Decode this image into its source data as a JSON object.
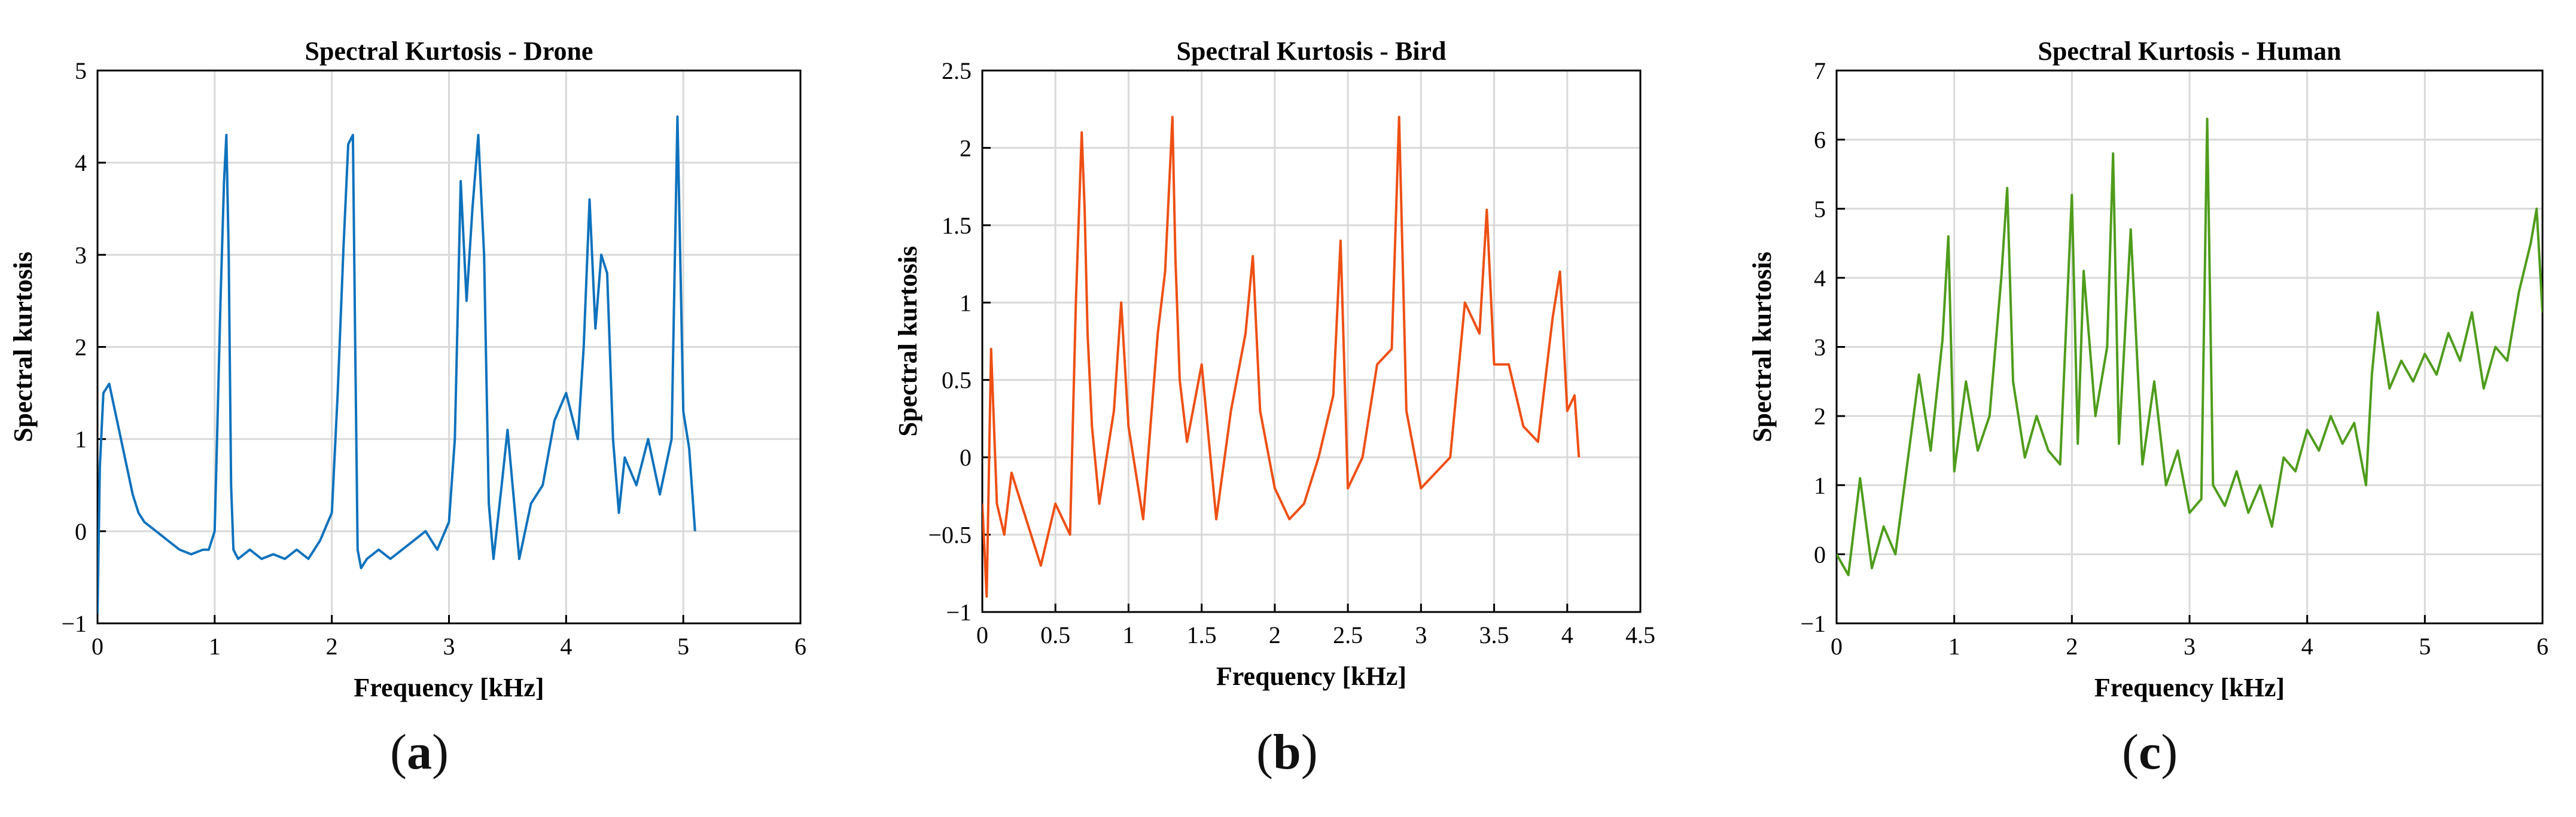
{
  "chart_data": [
    {
      "type": "line",
      "title": "Spectral Kurtosis - Drone",
      "xlabel": "Frequency [kHz]",
      "ylabel": "Spectral kurtosis",
      "xlim": [
        0,
        6
      ],
      "ylim": [
        -1,
        5
      ],
      "xticks": [
        "0",
        "1",
        "2",
        "3",
        "4",
        "5",
        "6"
      ],
      "yticks": [
        "−1",
        "0",
        "1",
        "2",
        "3",
        "4",
        "5"
      ],
      "grid": true,
      "color": "#0e72bd",
      "caption_letter": "a",
      "x": [
        0.0,
        0.02,
        0.05,
        0.1,
        0.15,
        0.2,
        0.25,
        0.3,
        0.35,
        0.4,
        0.5,
        0.6,
        0.7,
        0.8,
        0.9,
        0.95,
        1.0,
        1.02,
        1.05,
        1.08,
        1.1,
        1.12,
        1.14,
        1.16,
        1.2,
        1.3,
        1.4,
        1.5,
        1.6,
        1.7,
        1.8,
        1.9,
        2.0,
        2.05,
        2.1,
        2.14,
        2.18,
        2.2,
        2.22,
        2.25,
        2.3,
        2.4,
        2.5,
        2.6,
        2.7,
        2.8,
        2.9,
        3.0,
        3.05,
        3.1,
        3.15,
        3.2,
        3.25,
        3.3,
        3.34,
        3.38,
        3.45,
        3.5,
        3.6,
        3.7,
        3.8,
        3.9,
        4.0,
        4.1,
        4.15,
        4.2,
        4.25,
        4.3,
        4.35,
        4.4,
        4.45,
        4.5,
        4.6,
        4.7,
        4.8,
        4.9,
        4.95,
        5.0,
        5.05,
        5.1
      ],
      "y": [
        -0.9,
        0.7,
        1.5,
        1.6,
        1.3,
        1.0,
        0.7,
        0.4,
        0.2,
        0.1,
        0.0,
        -0.1,
        -0.2,
        -0.25,
        -0.2,
        -0.2,
        0.0,
        1.0,
        2.5,
        3.8,
        4.3,
        3.0,
        0.5,
        -0.2,
        -0.3,
        -0.2,
        -0.3,
        -0.25,
        -0.3,
        -0.2,
        -0.3,
        -0.1,
        0.2,
        1.5,
        3.1,
        4.2,
        4.3,
        2.0,
        -0.2,
        -0.4,
        -0.3,
        -0.2,
        -0.3,
        -0.2,
        -0.1,
        0.0,
        -0.2,
        0.1,
        1.0,
        3.8,
        2.5,
        3.5,
        4.3,
        3.0,
        0.3,
        -0.3,
        0.5,
        1.1,
        -0.3,
        0.3,
        0.5,
        1.2,
        1.5,
        1.0,
        2.0,
        3.6,
        2.2,
        3.0,
        2.8,
        1.0,
        0.2,
        0.8,
        0.5,
        1.0,
        0.4,
        1.0,
        4.5,
        1.3,
        0.9,
        0.0
      ]
    },
    {
      "type": "line",
      "title": "Spectral Kurtosis - Bird",
      "xlabel": "Frequency [kHz]",
      "ylabel": "Spectral kurtosis",
      "xlim": [
        0,
        4.5
      ],
      "ylim": [
        -1,
        2.5
      ],
      "xticks": [
        "0",
        "0.5",
        "1",
        "1.5",
        "2",
        "2.5",
        "3",
        "3.5",
        "4",
        "4.5"
      ],
      "yticks": [
        "−1",
        "−0.5",
        "0",
        "0.5",
        "1",
        "1.5",
        "2",
        "2.5"
      ],
      "grid": true,
      "color": "#ee4f14",
      "caption_letter": "b",
      "x": [
        0.0,
        0.03,
        0.06,
        0.1,
        0.15,
        0.2,
        0.3,
        0.4,
        0.5,
        0.6,
        0.64,
        0.68,
        0.7,
        0.72,
        0.75,
        0.8,
        0.9,
        0.95,
        1.0,
        1.1,
        1.2,
        1.25,
        1.3,
        1.32,
        1.35,
        1.4,
        1.5,
        1.6,
        1.7,
        1.8,
        1.85,
        1.9,
        2.0,
        2.1,
        2.2,
        2.3,
        2.4,
        2.45,
        2.5,
        2.6,
        2.7,
        2.8,
        2.85,
        2.9,
        3.0,
        3.1,
        3.2,
        3.3,
        3.4,
        3.45,
        3.5,
        3.6,
        3.7,
        3.8,
        3.9,
        3.95,
        4.0,
        4.05,
        4.08
      ],
      "y": [
        -0.3,
        -0.9,
        0.7,
        -0.3,
        -0.5,
        -0.1,
        -0.4,
        -0.7,
        -0.3,
        -0.5,
        1.0,
        2.1,
        1.6,
        0.8,
        0.2,
        -0.3,
        0.3,
        1.0,
        0.2,
        -0.4,
        0.8,
        1.2,
        2.2,
        1.3,
        0.5,
        0.1,
        0.6,
        -0.4,
        0.3,
        0.8,
        1.3,
        0.3,
        -0.2,
        -0.4,
        -0.3,
        0.0,
        0.4,
        1.4,
        -0.2,
        0.0,
        0.6,
        0.7,
        2.2,
        0.3,
        -0.2,
        -0.1,
        0.0,
        1.0,
        0.8,
        1.6,
        0.6,
        0.6,
        0.2,
        0.1,
        0.9,
        1.2,
        0.3,
        0.4,
        0.0
      ]
    },
    {
      "type": "line",
      "title": "Spectral Kurtosis - Human",
      "xlabel": "Frequency [kHz]",
      "ylabel": "Spectral kurtosis",
      "xlim": [
        0,
        6
      ],
      "ylim": [
        -1,
        7
      ],
      "xticks": [
        "0",
        "1",
        "2",
        "3",
        "4",
        "5",
        "6"
      ],
      "yticks": [
        "−1",
        "0",
        "1",
        "2",
        "3",
        "4",
        "5",
        "6",
        "7"
      ],
      "grid": true,
      "color": "#4f9c1c",
      "caption_letter": "c",
      "x": [
        0.0,
        0.1,
        0.2,
        0.3,
        0.4,
        0.5,
        0.6,
        0.7,
        0.8,
        0.9,
        0.95,
        1.0,
        1.1,
        1.2,
        1.3,
        1.4,
        1.45,
        1.5,
        1.6,
        1.7,
        1.8,
        1.9,
        2.0,
        2.05,
        2.1,
        2.2,
        2.3,
        2.35,
        2.4,
        2.5,
        2.6,
        2.7,
        2.8,
        2.9,
        3.0,
        3.1,
        3.15,
        3.2,
        3.3,
        3.4,
        3.5,
        3.6,
        3.7,
        3.8,
        3.9,
        4.0,
        4.1,
        4.2,
        4.3,
        4.4,
        4.5,
        4.55,
        4.6,
        4.7,
        4.8,
        4.9,
        5.0,
        5.1,
        5.2,
        5.3,
        5.4,
        5.5,
        5.6,
        5.7,
        5.8,
        5.9,
        5.95,
        6.0
      ],
      "y": [
        0.0,
        -0.3,
        1.1,
        -0.2,
        0.4,
        0.0,
        1.3,
        2.6,
        1.5,
        3.1,
        4.6,
        1.2,
        2.5,
        1.5,
        2.0,
        4.0,
        5.3,
        2.5,
        1.4,
        2.0,
        1.5,
        1.3,
        5.2,
        1.6,
        4.1,
        2.0,
        3.0,
        5.8,
        1.6,
        4.7,
        1.3,
        2.5,
        1.0,
        1.5,
        0.6,
        0.8,
        6.3,
        1.0,
        0.7,
        1.2,
        0.6,
        1.0,
        0.4,
        1.4,
        1.2,
        1.8,
        1.5,
        2.0,
        1.6,
        1.9,
        1.0,
        2.6,
        3.5,
        2.4,
        2.8,
        2.5,
        2.9,
        2.6,
        3.2,
        2.8,
        3.5,
        2.4,
        3.0,
        2.8,
        3.8,
        4.5,
        5.0,
        3.5
      ]
    }
  ]
}
